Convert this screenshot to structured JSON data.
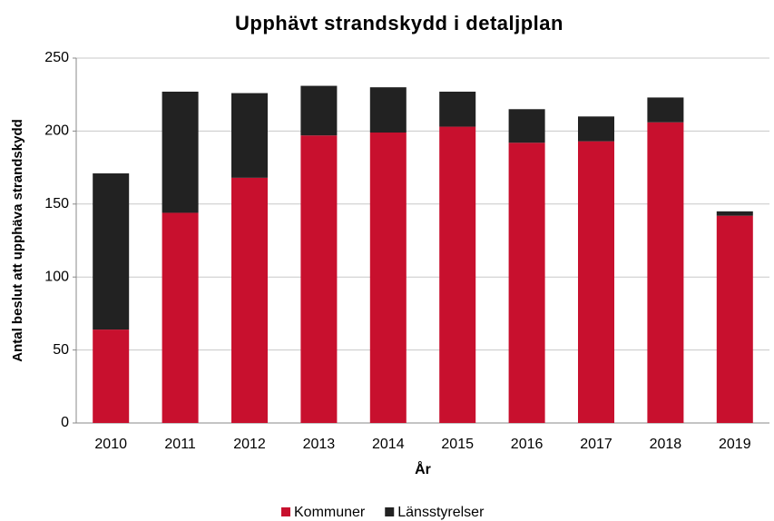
{
  "chart_data": {
    "type": "stacked_bar",
    "title": "Upphävt strandskydd i detaljplan",
    "xlabel": "År",
    "ylabel": "Antal beslut att upphäva strandskydd",
    "categories": [
      "2010",
      "2011",
      "2012",
      "2013",
      "2014",
      "2015",
      "2016",
      "2017",
      "2018",
      "2019"
    ],
    "series": [
      {
        "name": "Kommuner",
        "color": "#c8102e",
        "values": [
          64,
          144,
          168,
          197,
          199,
          203,
          192,
          193,
          206,
          142
        ]
      },
      {
        "name": "Länsstyrelser",
        "color": "#222222",
        "values": [
          107,
          83,
          58,
          34,
          31,
          24,
          23,
          17,
          17,
          3
        ]
      }
    ],
    "ylim": [
      0,
      250
    ],
    "yticks": [
      0,
      50,
      100,
      150,
      200,
      250
    ],
    "grid": true,
    "legend": "bottom"
  }
}
